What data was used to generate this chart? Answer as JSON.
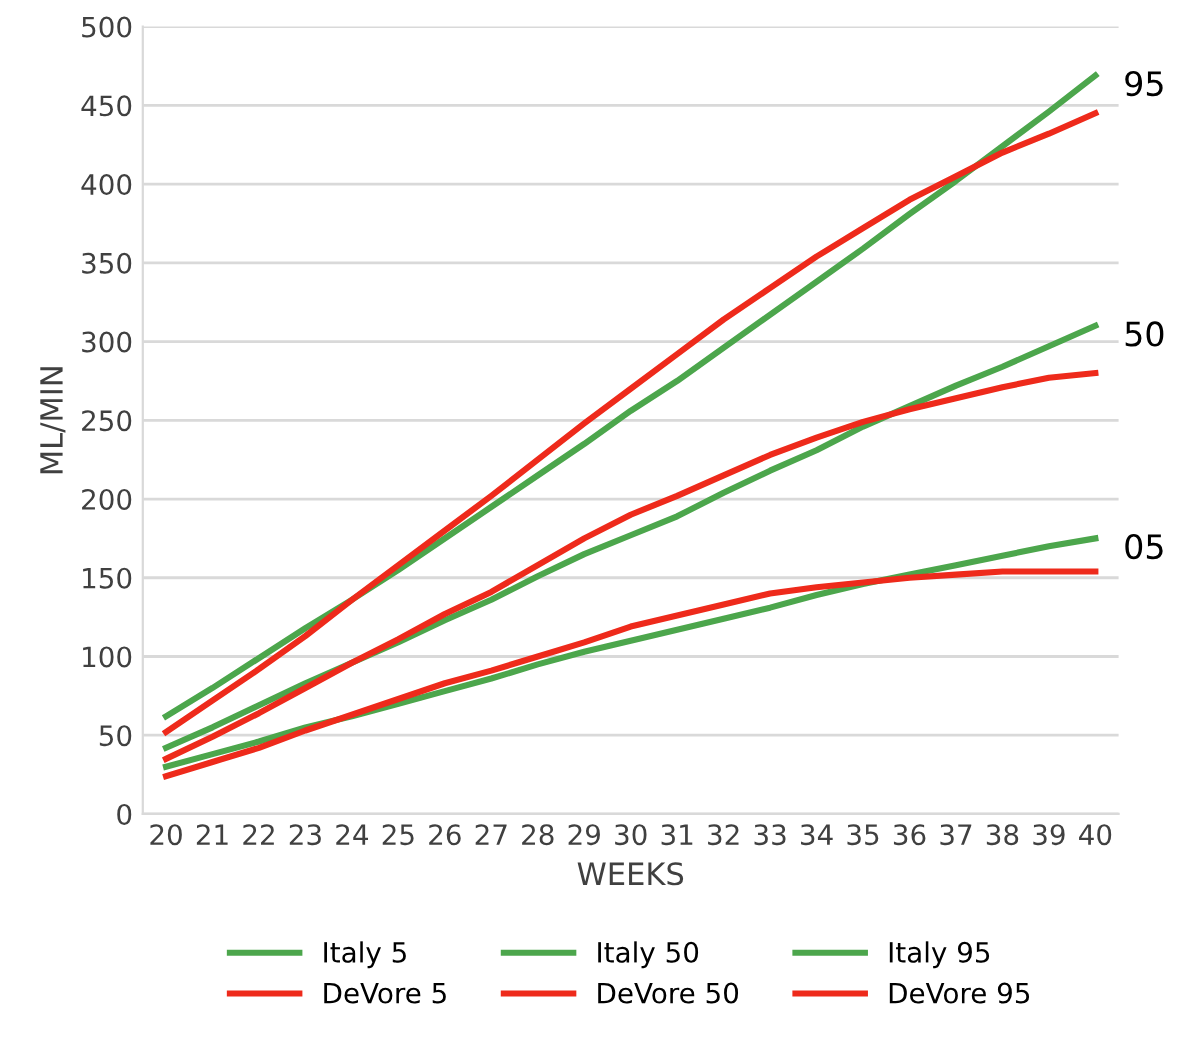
{
  "chart_data": {
    "type": "line",
    "xlabel": "WEEKS",
    "ylabel": "ML/MIN",
    "categories": [
      "20",
      "21",
      "22",
      "23",
      "24",
      "25",
      "26",
      "27",
      "28",
      "29",
      "30",
      "31",
      "32",
      "33",
      "34",
      "35",
      "36",
      "37",
      "38",
      "39",
      "40"
    ],
    "series": [
      {
        "name": "Italy 5",
        "color": "#4ca64c",
        "values": [
          30,
          38,
          46,
          55,
          62,
          70,
          78,
          86,
          95,
          103,
          110,
          117,
          124,
          131,
          139,
          146,
          152,
          158,
          164,
          170,
          175
        ]
      },
      {
        "name": "Italy 50",
        "color": "#4ca64c",
        "values": [
          42,
          55,
          69,
          83,
          96,
          109,
          123,
          136,
          151,
          165,
          177,
          189,
          204,
          218,
          231,
          246,
          259,
          272,
          284,
          297,
          310
        ]
      },
      {
        "name": "Italy 95",
        "color": "#4ca64c",
        "values": [
          62,
          80,
          99,
          118,
          136,
          155,
          175,
          195,
          215,
          235,
          256,
          275,
          296,
          317,
          338,
          359,
          381,
          402,
          424,
          446,
          469
        ]
      },
      {
        "name": "DeVore 5",
        "color": "#ee2a1b",
        "values": [
          24,
          33,
          42,
          53,
          63,
          73,
          83,
          91,
          100,
          109,
          119,
          126,
          133,
          140,
          144,
          147,
          150,
          152,
          154,
          154,
          154
        ]
      },
      {
        "name": "DeVore 50",
        "color": "#ee2a1b",
        "values": [
          35,
          49,
          64,
          80,
          96,
          111,
          127,
          141,
          158,
          175,
          190,
          202,
          215,
          228,
          239,
          249,
          257,
          264,
          271,
          277,
          280
        ]
      },
      {
        "name": "DeVore 95",
        "color": "#ee2a1b",
        "values": [
          52,
          72,
          92,
          113,
          136,
          158,
          180,
          202,
          225,
          248,
          270,
          292,
          314,
          334,
          354,
          372,
          390,
          405,
          420,
          432,
          445
        ]
      }
    ],
    "annotations": [
      "95",
      "50",
      "05"
    ],
    "ylim": [
      0,
      500
    ],
    "yticks": [
      0,
      50,
      100,
      150,
      200,
      250,
      300,
      350,
      400,
      450,
      500
    ],
    "grid": "y",
    "legend": "bottom",
    "marker": "none",
    "line_style": "solid"
  }
}
